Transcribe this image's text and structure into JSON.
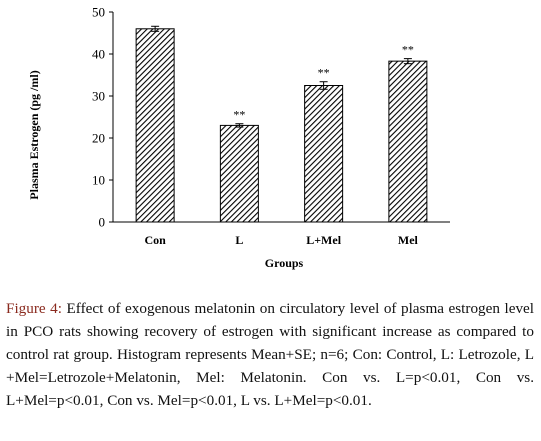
{
  "chart_data": {
    "type": "bar",
    "categories": [
      "Con",
      "L",
      "L+Mel",
      "Mel"
    ],
    "values": [
      46,
      23,
      32.5,
      38.3
    ],
    "errors": [
      0.6,
      0.4,
      0.9,
      0.6
    ],
    "significance": [
      "",
      "**",
      "**",
      "**"
    ],
    "ylabel": "Plasma Estrogen (pg /ml)",
    "xlabel": "Groups",
    "ylim": [
      0,
      50
    ],
    "yticks": [
      "0",
      "10",
      "20",
      "30",
      "40",
      "50"
    ],
    "grid": false,
    "bar_fill": "diagonal hatch"
  },
  "caption": {
    "label": "Figure 4:",
    "text": "Effect of exogenous melatonin on circulatory level of plasma estrogen level in PCO rats showing recovery of estrogen with significant increase as compared to control rat group. Histogram represents Mean+SE; n=6; Con: Control, L: Letrozole, L +Mel=Letrozole+Melatonin, Mel: Melatonin. Con vs. L=p<0.01, Con vs. L+Mel=p<0.01, Con vs. Mel=p<0.01, L vs. L+Mel=p<0.01."
  }
}
